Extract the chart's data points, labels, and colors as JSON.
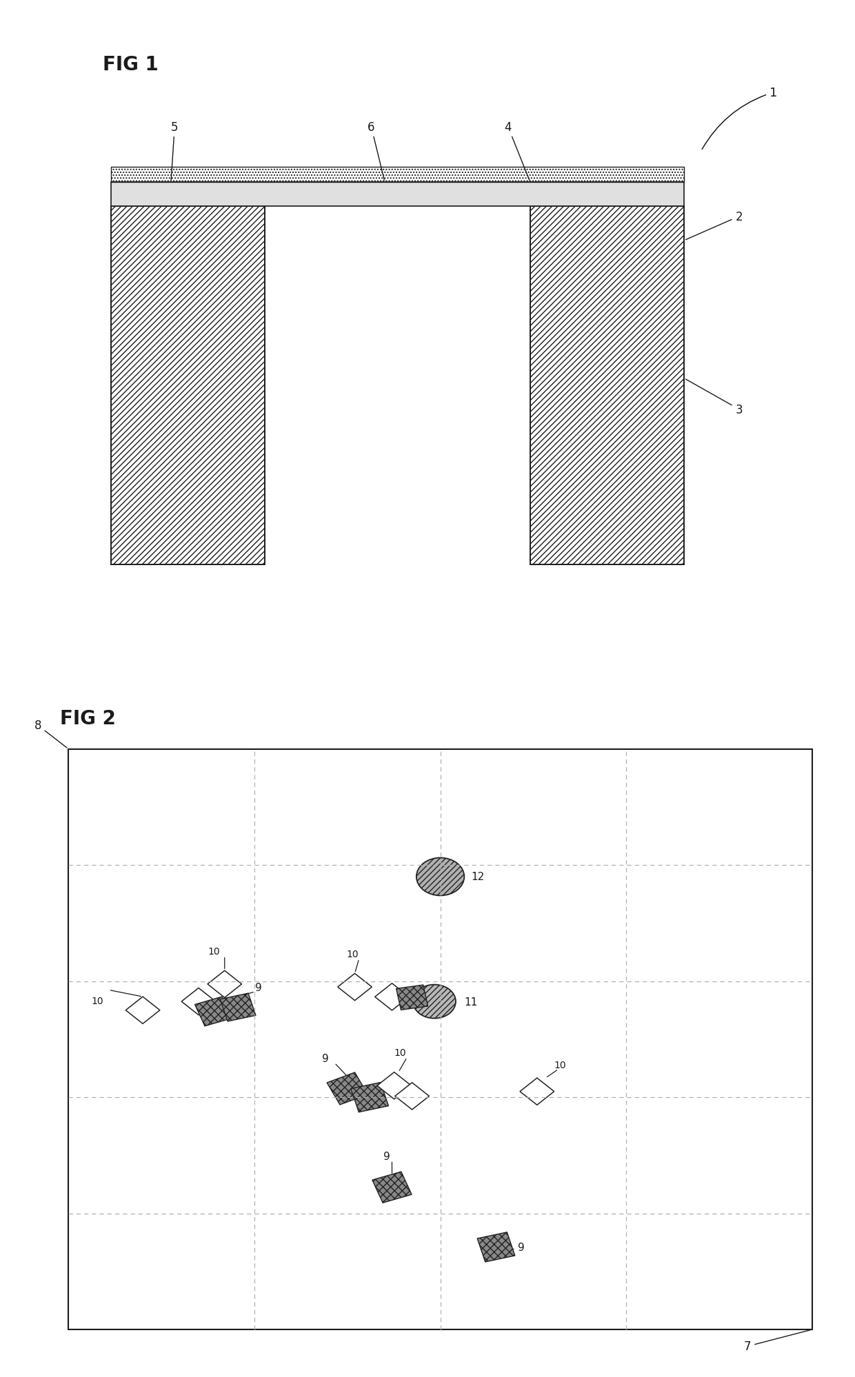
{
  "bg_color": "#ffffff",
  "fig_width": 12.4,
  "fig_height": 19.99,
  "label_color": "#1a1a1a",
  "line_color": "#1a1a1a",
  "grid_color": "#b0b0b0",
  "hatch_lw": 0.6
}
